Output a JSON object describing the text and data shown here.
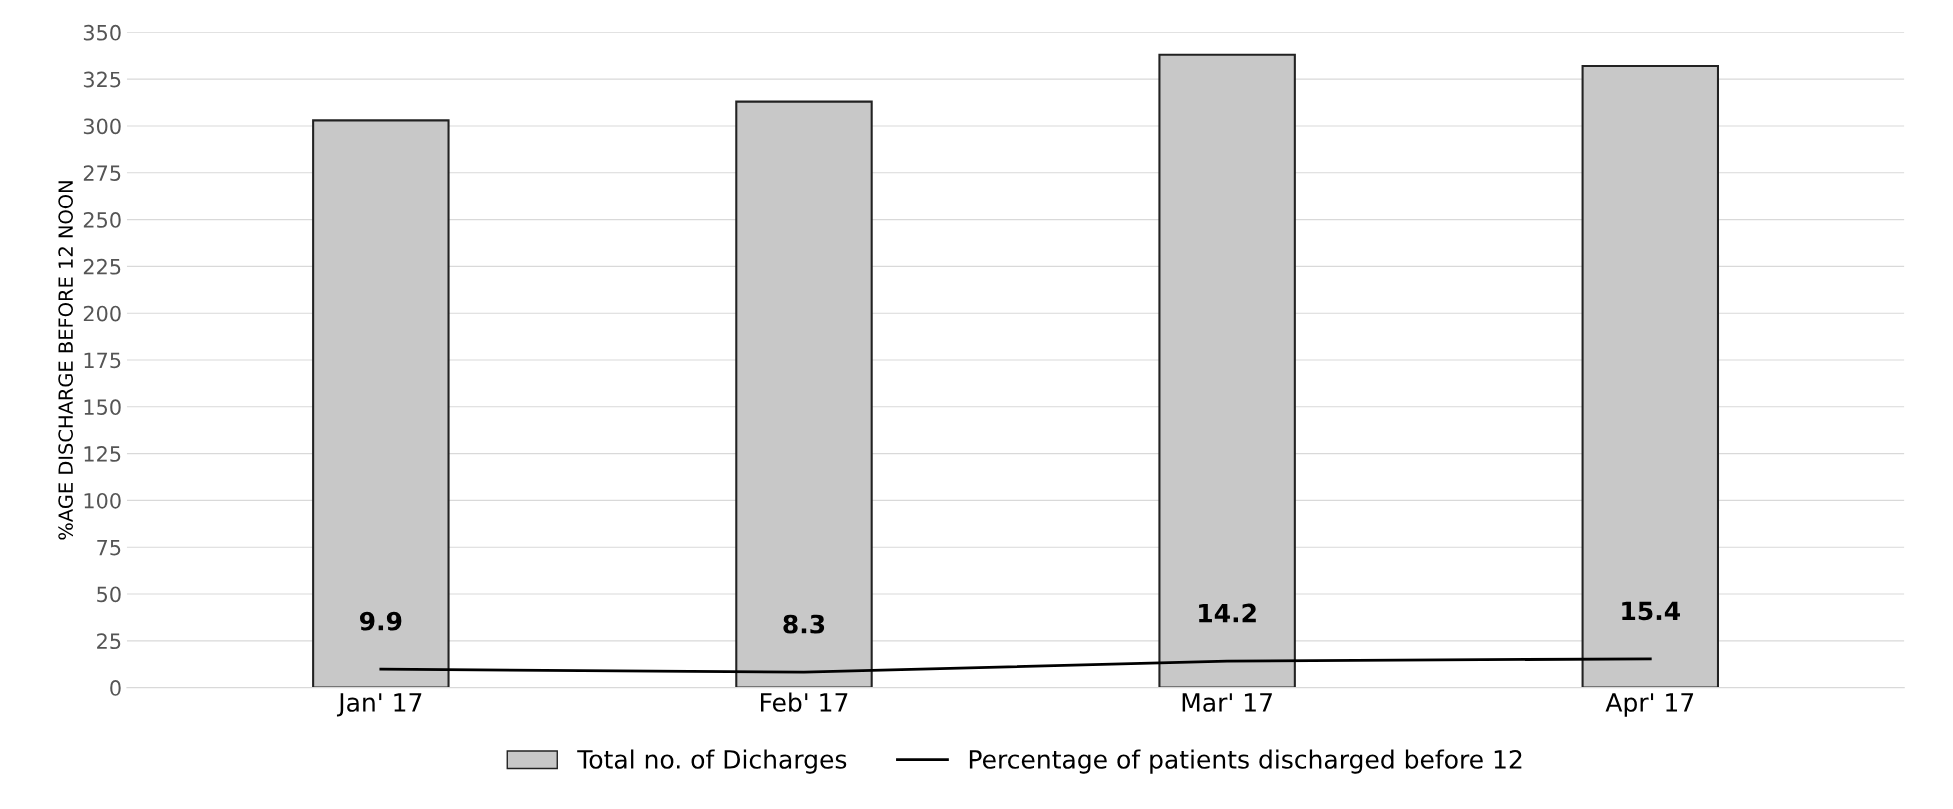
{
  "chart_data": {
    "type": "bar",
    "ylabel": "%AGE DISCHARGE BEFORE 12 NOON",
    "categories": [
      "Jan' 17",
      "Feb' 17",
      "Mar' 17",
      "Apr' 17"
    ],
    "series": [
      {
        "name": "Total no. of Dicharges",
        "color": "#c8c8c8",
        "values": [
          303,
          313,
          338,
          332
        ]
      },
      {
        "name": "Percentage of patients discharged before 12",
        "type": "line",
        "color": "#000000",
        "values": [
          9.9,
          8.3,
          14.2,
          15.4
        ],
        "value_labels": [
          "9.9",
          "8.3",
          "14.2",
          "15.4"
        ]
      }
    ],
    "ylim": [
      0,
      350
    ],
    "yticks": [
      0,
      25,
      50,
      75,
      100,
      125,
      150,
      175,
      200,
      225,
      250,
      275,
      300,
      325,
      350
    ],
    "grid": "y",
    "legend": "bottom",
    "marker": "none",
    "line_style": "solid"
  }
}
